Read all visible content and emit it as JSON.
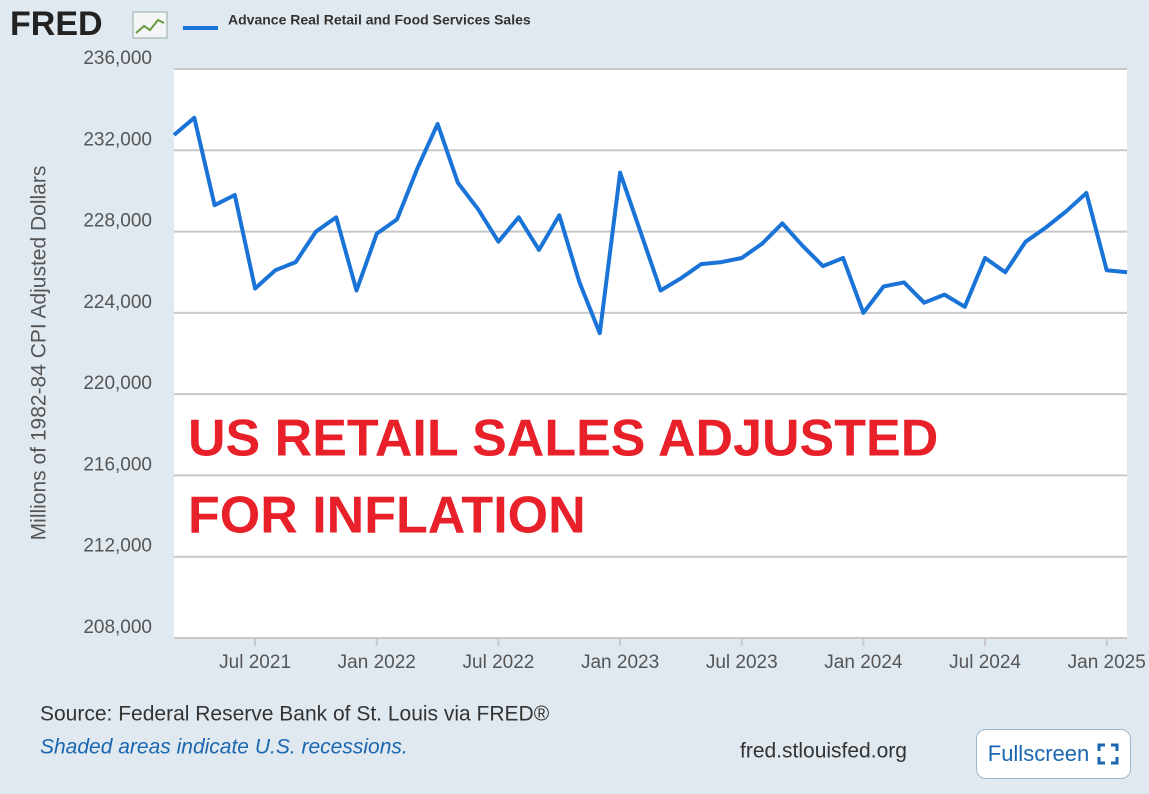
{
  "logo": "FRED",
  "source": "Source: Federal Reserve Bank of St. Louis via FRED®",
  "note": "Shaded areas indicate U.S. recessions.",
  "site": "fred.stlouisfed.org",
  "fullscreen_button": "Fullscreen",
  "chart_data": {
    "type": "line",
    "y_label": "Millions of 1982-84 CPI Adjusted Dollars",
    "annotations": [
      "US RETAIL SALES ADJUSTED",
      "FOR INFLATION"
    ],
    "annotation_color": "#e8202a",
    "grid": true,
    "x": [
      "2021-03",
      "2021-04",
      "2021-05",
      "2021-06",
      "2021-07",
      "2021-08",
      "2021-09",
      "2021-10",
      "2021-11",
      "2021-12",
      "2022-01",
      "2022-02",
      "2022-03",
      "2022-04",
      "2022-05",
      "2022-06",
      "2022-07",
      "2022-08",
      "2022-09",
      "2022-10",
      "2022-11",
      "2022-12",
      "2023-01",
      "2023-02",
      "2023-03",
      "2023-04",
      "2023-05",
      "2023-06",
      "2023-07",
      "2023-08",
      "2023-09",
      "2023-10",
      "2023-11",
      "2023-12",
      "2024-01",
      "2024-02",
      "2024-03",
      "2024-04",
      "2024-05",
      "2024-06",
      "2024-07",
      "2024-08",
      "2024-09",
      "2024-10",
      "2024-11",
      "2024-12",
      "2025-01",
      "2025-02"
    ],
    "series": [
      {
        "name": "Advance Real Retail and Food Services Sales",
        "color": "#1a73d6",
        "values": [
          232750,
          233600,
          229300,
          229800,
          225200,
          226100,
          226500,
          228000,
          228700,
          225100,
          227900,
          228600,
          231100,
          233300,
          230400,
          229100,
          227500,
          228700,
          227100,
          228800,
          225500,
          223000,
          230900,
          228000,
          225100,
          225700,
          226400,
          226500,
          226700,
          227400,
          228400,
          227300,
          226300,
          226700,
          224000,
          225300,
          225500,
          224500,
          224900,
          224300,
          226700,
          226000,
          227500,
          228200,
          229000,
          229900,
          226100,
          226000
        ]
      }
    ],
    "xlim": [
      "2021-03",
      "2025-02"
    ],
    "xticks": [
      {
        "value": "2021-07",
        "label": "Jul 2021"
      },
      {
        "value": "2022-01",
        "label": "Jan 2022"
      },
      {
        "value": "2022-07",
        "label": "Jul 2022"
      },
      {
        "value": "2023-01",
        "label": "Jan 2023"
      },
      {
        "value": "2023-07",
        "label": "Jul 2023"
      },
      {
        "value": "2024-01",
        "label": "Jan 2024"
      },
      {
        "value": "2024-07",
        "label": "Jul 2024"
      },
      {
        "value": "2025-01",
        "label": "Jan 2025"
      }
    ],
    "ylim": [
      208000,
      236000
    ],
    "yticks": [
      {
        "value": 208000,
        "label": "208,000"
      },
      {
        "value": 212000,
        "label": "212,000"
      },
      {
        "value": 216000,
        "label": "216,000"
      },
      {
        "value": 220000,
        "label": "220,000"
      },
      {
        "value": 224000,
        "label": "224,000"
      },
      {
        "value": 228000,
        "label": "228,000"
      },
      {
        "value": 232000,
        "label": "232,000"
      },
      {
        "value": 236000,
        "label": "236,000"
      }
    ]
  }
}
